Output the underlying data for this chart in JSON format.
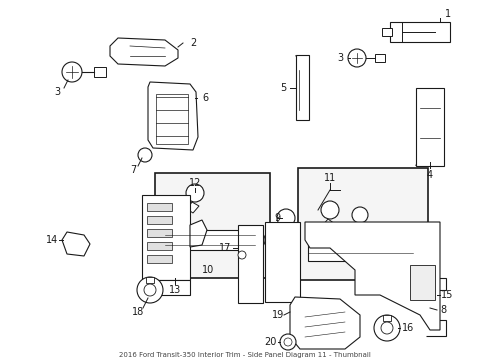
{
  "title": "2016 Ford Transit-350 Interior Trim - Side Panel Diagram 11 - Thumbnail",
  "background_color": "#ffffff",
  "line_color": "#1a1a1a",
  "figsize": [
    4.89,
    3.6
  ],
  "dpi": 100
}
